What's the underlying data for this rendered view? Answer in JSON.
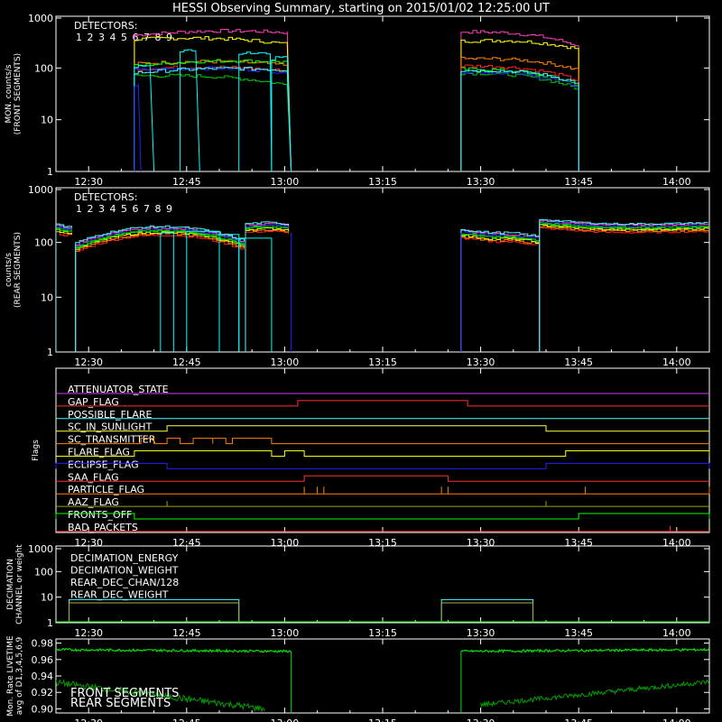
{
  "title": "HESSI Observing Summary, starting on 2015/01/02 12:25:00 UT",
  "x_ticks": [
    "12:30",
    "12:45",
    "13:00",
    "13:15",
    "13:30",
    "13:45",
    "14:00"
  ],
  "colors": {
    "d1": "#ff2020",
    "d2": "#ff3fbf",
    "d3": "#ff8000",
    "d4": "#ffff00",
    "d5": "#00ff00",
    "d6": "#00c800",
    "d7": "#40ffff",
    "d8": "#00ffff",
    "d9": "#2020ff"
  },
  "chart_data": [
    {
      "id": "front",
      "type": "line",
      "ylabel_lines": [
        "MON. counts/s",
        "(FRONT SEGMENTS)"
      ],
      "y_scale": "log",
      "ylim": [
        1,
        1000
      ],
      "y_ticks": [
        "1",
        "10",
        "100",
        "1000"
      ],
      "legend_title": "DETECTORS:",
      "legend_entries": [
        "1",
        "2",
        "3",
        "4",
        "5",
        "6",
        "7",
        "8",
        "9"
      ],
      "series_approx": [
        {
          "name": "2",
          "segments": [
            {
              "x": [
                "12:37",
                "13:01"
              ],
              "y_start": 400,
              "y_end": 450
            },
            {
              "x": [
                "13:27",
                "13:45"
              ],
              "y_start": 500,
              "y_end": 250
            }
          ]
        },
        {
          "name": "4",
          "segments": [
            {
              "x": [
                "12:37",
                "13:01"
              ],
              "y_start": 300,
              "y_end": 250
            },
            {
              "x": [
                "13:27",
                "13:45"
              ],
              "y_start": 300,
              "y_end": 200
            }
          ]
        },
        {
          "name": "5",
          "segments": [
            {
              "x": [
                "12:37",
                "13:01"
              ],
              "y_start": 100,
              "y_end": 120
            },
            {
              "x": [
                "13:27",
                "13:45"
              ],
              "y_start": 90,
              "y_end": 45
            }
          ]
        },
        {
          "name": "6",
          "segments": [
            {
              "x": [
                "12:37",
                "13:01"
              ],
              "y_start": 70,
              "y_end": 40
            },
            {
              "x": [
                "13:27",
                "13:45"
              ],
              "y_start": 80,
              "y_end": 35
            }
          ]
        },
        {
          "name": "9",
          "segments": [
            {
              "x": [
                "12:37",
                "13:01"
              ],
              "y_start": 90,
              "y_end": 80
            },
            {
              "x": [
                "13:27",
                "13:45"
              ],
              "y_start": 80,
              "y_end": 40
            }
          ]
        }
      ]
    },
    {
      "id": "rear",
      "type": "line",
      "ylabel_lines": [
        "counts/s",
        "(REAR SEGMENTS)"
      ],
      "y_scale": "log",
      "ylim": [
        1,
        1000
      ],
      "y_ticks": [
        "1",
        "10",
        "100",
        "1000"
      ],
      "legend_title": "DETECTORS:",
      "legend_entries": [
        "1",
        "2",
        "3",
        "4",
        "5",
        "6",
        "7",
        "8",
        "9"
      ],
      "series_approx": [
        {
          "name": "5",
          "segments": [
            {
              "x": [
                "12:25",
                "13:01"
              ],
              "y_start": 190,
              "y_end": 180
            },
            {
              "x": [
                "13:27",
                "14:05"
              ],
              "y_start": 150,
              "y_end": 220
            }
          ]
        },
        {
          "name": "1",
          "segments": [
            {
              "x": [
                "12:25",
                "13:01"
              ],
              "y_start": 150,
              "y_end": 170
            },
            {
              "x": [
                "13:27",
                "14:05"
              ],
              "y_start": 110,
              "y_end": 150
            }
          ]
        }
      ]
    },
    {
      "id": "flags",
      "type": "timeline",
      "ylabel": "Flags",
      "flags": [
        {
          "name": "ATTENUATOR_STATE",
          "color": "#d040ff",
          "on": []
        },
        {
          "name": "GAP_FLAG",
          "color": "#ff3030",
          "on": [
            [
              "13:02",
              "13:28"
            ]
          ]
        },
        {
          "name": "POSSIBLE_FLARE",
          "color": "#40ffff",
          "on": []
        },
        {
          "name": "SC_IN_SUNLIGHT",
          "color": "#ffff40",
          "on": [
            [
              "12:42",
              "13:40"
            ]
          ]
        },
        {
          "name": "SC_TRANSMITTER",
          "color": "#ff8000",
          "on": [
            [
              "12:38",
              "12:40"
            ],
            [
              "12:42",
              "12:44"
            ],
            [
              "12:46",
              "12:49"
            ],
            [
              "12:49",
              "12:51"
            ],
            [
              "12:52",
              "12:58"
            ]
          ]
        },
        {
          "name": "FLARE_FLAG",
          "color": "#ffff00",
          "on": [
            [
              "12:37",
              "12:58"
            ],
            [
              "13:00",
              "13:03"
            ],
            [
              "13:43",
              "14:05"
            ]
          ]
        },
        {
          "name": "ECLIPSE_FLAG",
          "color": "#2020ff",
          "on": [
            [
              "12:25",
              "12:42"
            ],
            [
              "13:40",
              "14:05"
            ]
          ]
        },
        {
          "name": "SAA_FLAG",
          "color": "#ff3030",
          "on": [
            [
              "13:03",
              "13:25"
            ]
          ]
        },
        {
          "name": "PARTICLE_FLAG",
          "color": "#ff8000",
          "on": []
        },
        {
          "name": "AAZ_FLAG",
          "color": "#a0a000",
          "on": []
        },
        {
          "name": "FRONTS_OFF",
          "color": "#00ff00",
          "on": [
            [
              "12:25",
              "12:37"
            ],
            [
              "13:45",
              "14:05"
            ]
          ]
        },
        {
          "name": "BAD_PACKETS",
          "color": "#ff3030",
          "on": []
        }
      ]
    },
    {
      "id": "decimation",
      "type": "line",
      "ylabel_lines": [
        "DECIMATION",
        "CHANNEL or weight"
      ],
      "y_scale": "log",
      "ylim": [
        1,
        1000
      ],
      "y_ticks": [
        "1",
        "10",
        "100",
        "1000"
      ],
      "legend_entries": [
        {
          "name": "DECIMATION_ENERGY",
          "color": "#00ff00"
        },
        {
          "name": "DECIMATION_WEIGHT",
          "color": "#ff6020"
        },
        {
          "name": "REAR_DEC_CHAN/128",
          "color": "#40ffff"
        },
        {
          "name": "REAR_DEC_WEIGHT",
          "color": "#b0b040"
        }
      ],
      "series_approx": [
        {
          "name": "REAR_DEC_CHAN/128",
          "segments": [
            {
              "x": [
                "12:27",
                "12:53"
              ],
              "y": 8
            },
            {
              "x": [
                "13:24",
                "13:38"
              ],
              "y": 8
            }
          ]
        },
        {
          "name": "REAR_DEC_WEIGHT",
          "segments": [
            {
              "x": [
                "12:27",
                "12:53"
              ],
              "y": 6
            },
            {
              "x": [
                "13:24",
                "13:38"
              ],
              "y": 6
            }
          ]
        }
      ]
    },
    {
      "id": "livetime",
      "type": "line",
      "ylabel_lines": [
        "Mon. Rate LIVETIME",
        "avg of D1,3,4,5,6,9"
      ],
      "ylim": [
        0.9,
        0.98
      ],
      "y_ticks": [
        "0.90",
        "0.92",
        "0.94",
        "0.96",
        "0.98"
      ],
      "legend_entries": [
        {
          "name": "FRONT SEGMENTS",
          "color": "#00e000"
        },
        {
          "name": "REAR SEGMENTS",
          "color": "#00a000"
        }
      ],
      "series_approx": [
        {
          "name": "FRONT SEGMENTS",
          "segments": [
            {
              "x": [
                "12:25",
                "13:01"
              ],
              "y": 0.971
            },
            {
              "x": [
                "13:27",
                "14:05"
              ],
              "y": 0.971
            }
          ]
        },
        {
          "name": "REAR SEGMENTS",
          "segments": [
            {
              "x": [
                "12:25",
                "12:57"
              ],
              "y_start": 0.93,
              "y_end": 0.901
            },
            {
              "x": [
                "13:30",
                "14:05"
              ],
              "y_start": 0.91,
              "y_end": 0.934
            }
          ]
        }
      ]
    }
  ]
}
